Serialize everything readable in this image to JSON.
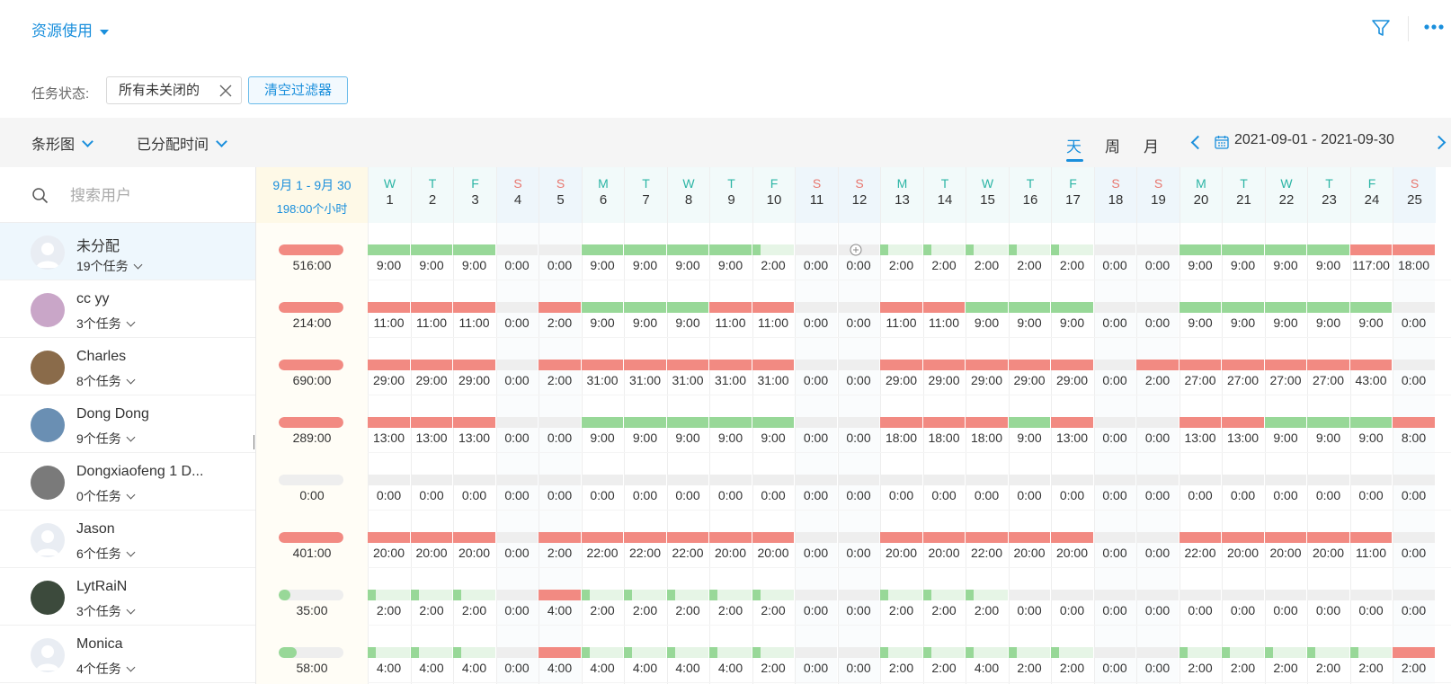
{
  "header": {
    "title": "资源使用"
  },
  "filter": {
    "label": "任务状态:",
    "chip": "所有未关闭的",
    "clear": "清空过滤器"
  },
  "toolbar": {
    "chart_type": "条形图",
    "metric": "已分配时间",
    "tabs": [
      {
        "label": "天",
        "active": true
      },
      {
        "label": "周",
        "active": false
      },
      {
        "label": "月",
        "active": false
      }
    ],
    "date_range": "2021-09-01 - 2021-09-30"
  },
  "search": {
    "placeholder": "搜索用户"
  },
  "summary_header": {
    "range": "9月 1 - 9月 30",
    "hours": "198:00个小时"
  },
  "days": [
    {
      "d": "W",
      "n": "1"
    },
    {
      "d": "T",
      "n": "2"
    },
    {
      "d": "F",
      "n": "3"
    },
    {
      "d": "S",
      "n": "4"
    },
    {
      "d": "S",
      "n": "5"
    },
    {
      "d": "M",
      "n": "6"
    },
    {
      "d": "T",
      "n": "7"
    },
    {
      "d": "W",
      "n": "8"
    },
    {
      "d": "T",
      "n": "9"
    },
    {
      "d": "F",
      "n": "10"
    },
    {
      "d": "S",
      "n": "11"
    },
    {
      "d": "S",
      "n": "12"
    },
    {
      "d": "M",
      "n": "13"
    },
    {
      "d": "T",
      "n": "14"
    },
    {
      "d": "W",
      "n": "15"
    },
    {
      "d": "T",
      "n": "16"
    },
    {
      "d": "F",
      "n": "17"
    },
    {
      "d": "S",
      "n": "18"
    },
    {
      "d": "S",
      "n": "19"
    },
    {
      "d": "M",
      "n": "20"
    },
    {
      "d": "T",
      "n": "21"
    },
    {
      "d": "W",
      "n": "22"
    },
    {
      "d": "T",
      "n": "23"
    },
    {
      "d": "F",
      "n": "24"
    },
    {
      "d": "S",
      "n": "25"
    }
  ],
  "colors": {
    "over": "#f28a82",
    "full": "#98d898",
    "partial_fill": "#98d898",
    "partial_bg": "#e6f5e6",
    "empty": "#eeeeee"
  },
  "users": [
    {
      "name": "未分配",
      "tasks": "19个任务",
      "total": "516:00",
      "total_state": "over",
      "total_fill": 1,
      "cells": [
        "9:00",
        "9:00",
        "9:00",
        "0:00",
        "0:00",
        "9:00",
        "9:00",
        "9:00",
        "9:00",
        "2:00",
        "0:00",
        "0:00",
        "2:00",
        "2:00",
        "2:00",
        "2:00",
        "2:00",
        "0:00",
        "0:00",
        "9:00",
        "9:00",
        "9:00",
        "9:00",
        "117:00",
        "18:00"
      ],
      "states": [
        "full",
        "full",
        "full",
        "empty",
        "empty",
        "full",
        "full",
        "full",
        "full",
        "partial",
        "empty",
        "empty",
        "partial",
        "partial",
        "partial",
        "partial",
        "partial",
        "empty",
        "empty",
        "full",
        "full",
        "full",
        "full",
        "over",
        "over"
      ]
    },
    {
      "name": "cc yy",
      "tasks": "3个任务",
      "total": "214:00",
      "total_state": "over",
      "total_fill": 1,
      "cells": [
        "11:00",
        "11:00",
        "11:00",
        "0:00",
        "2:00",
        "9:00",
        "9:00",
        "9:00",
        "11:00",
        "11:00",
        "0:00",
        "0:00",
        "11:00",
        "11:00",
        "9:00",
        "9:00",
        "9:00",
        "0:00",
        "0:00",
        "9:00",
        "9:00",
        "9:00",
        "9:00",
        "9:00",
        "0:00"
      ],
      "states": [
        "over",
        "over",
        "over",
        "empty",
        "over",
        "full",
        "full",
        "full",
        "over",
        "over",
        "empty",
        "empty",
        "over",
        "over",
        "full",
        "full",
        "full",
        "empty",
        "empty",
        "full",
        "full",
        "full",
        "full",
        "full",
        "empty"
      ]
    },
    {
      "name": "Charles",
      "tasks": "8个任务",
      "total": "690:00",
      "total_state": "over",
      "total_fill": 1,
      "cells": [
        "29:00",
        "29:00",
        "29:00",
        "0:00",
        "2:00",
        "31:00",
        "31:00",
        "31:00",
        "31:00",
        "31:00",
        "0:00",
        "0:00",
        "29:00",
        "29:00",
        "29:00",
        "29:00",
        "29:00",
        "0:00",
        "2:00",
        "27:00",
        "27:00",
        "27:00",
        "27:00",
        "43:00",
        "0:00"
      ],
      "states": [
        "over",
        "over",
        "over",
        "empty",
        "over",
        "over",
        "over",
        "over",
        "over",
        "over",
        "empty",
        "empty",
        "over",
        "over",
        "over",
        "over",
        "over",
        "empty",
        "over",
        "over",
        "over",
        "over",
        "over",
        "over",
        "empty"
      ]
    },
    {
      "name": "Dong Dong",
      "tasks": "9个任务",
      "total": "289:00",
      "total_state": "over",
      "total_fill": 1,
      "cells": [
        "13:00",
        "13:00",
        "13:00",
        "0:00",
        "0:00",
        "9:00",
        "9:00",
        "9:00",
        "9:00",
        "9:00",
        "0:00",
        "0:00",
        "18:00",
        "18:00",
        "18:00",
        "9:00",
        "13:00",
        "0:00",
        "0:00",
        "13:00",
        "13:00",
        "9:00",
        "9:00",
        "9:00",
        "8:00"
      ],
      "states": [
        "over",
        "over",
        "over",
        "empty",
        "empty",
        "full",
        "full",
        "full",
        "full",
        "full",
        "empty",
        "empty",
        "over",
        "over",
        "over",
        "full",
        "over",
        "empty",
        "empty",
        "over",
        "over",
        "full",
        "full",
        "full",
        "over"
      ]
    },
    {
      "name": "Dongxiaofeng 1 D...",
      "tasks": "0个任务",
      "total": "0:00",
      "total_state": "empty",
      "total_fill": 0,
      "cells": [
        "0:00",
        "0:00",
        "0:00",
        "0:00",
        "0:00",
        "0:00",
        "0:00",
        "0:00",
        "0:00",
        "0:00",
        "0:00",
        "0:00",
        "0:00",
        "0:00",
        "0:00",
        "0:00",
        "0:00",
        "0:00",
        "0:00",
        "0:00",
        "0:00",
        "0:00",
        "0:00",
        "0:00",
        "0:00"
      ],
      "states": [
        "empty",
        "empty",
        "empty",
        "empty",
        "empty",
        "empty",
        "empty",
        "empty",
        "empty",
        "empty",
        "empty",
        "empty",
        "empty",
        "empty",
        "empty",
        "empty",
        "empty",
        "empty",
        "empty",
        "empty",
        "empty",
        "empty",
        "empty",
        "empty",
        "empty"
      ]
    },
    {
      "name": "Jason",
      "tasks": "6个任务",
      "total": "401:00",
      "total_state": "over",
      "total_fill": 1,
      "cells": [
        "20:00",
        "20:00",
        "20:00",
        "0:00",
        "2:00",
        "22:00",
        "22:00",
        "22:00",
        "20:00",
        "20:00",
        "0:00",
        "0:00",
        "20:00",
        "20:00",
        "22:00",
        "20:00",
        "20:00",
        "0:00",
        "0:00",
        "22:00",
        "20:00",
        "20:00",
        "20:00",
        "11:00",
        "0:00"
      ],
      "states": [
        "over",
        "over",
        "over",
        "empty",
        "over",
        "over",
        "over",
        "over",
        "over",
        "over",
        "empty",
        "empty",
        "over",
        "over",
        "over",
        "over",
        "over",
        "empty",
        "empty",
        "over",
        "over",
        "over",
        "over",
        "over",
        "empty"
      ]
    },
    {
      "name": "LytRaiN",
      "tasks": "3个任务",
      "total": "35:00",
      "total_state": "partial",
      "total_fill": 0.18,
      "cells": [
        "2:00",
        "2:00",
        "2:00",
        "0:00",
        "4:00",
        "2:00",
        "2:00",
        "2:00",
        "2:00",
        "2:00",
        "0:00",
        "0:00",
        "2:00",
        "2:00",
        "2:00",
        "0:00",
        "0:00",
        "0:00",
        "0:00",
        "0:00",
        "0:00",
        "0:00",
        "0:00",
        "0:00",
        "0:00"
      ],
      "states": [
        "partial",
        "partial",
        "partial",
        "empty",
        "over",
        "partial",
        "partial",
        "partial",
        "partial",
        "partial",
        "empty",
        "empty",
        "partial",
        "partial",
        "partial",
        "empty",
        "empty",
        "empty",
        "empty",
        "empty",
        "empty",
        "empty",
        "empty",
        "empty",
        "empty"
      ]
    },
    {
      "name": "Monica",
      "tasks": "4个任务",
      "total": "58:00",
      "total_state": "partial",
      "total_fill": 0.28,
      "cells": [
        "4:00",
        "4:00",
        "4:00",
        "0:00",
        "4:00",
        "4:00",
        "4:00",
        "4:00",
        "4:00",
        "2:00",
        "0:00",
        "0:00",
        "2:00",
        "2:00",
        "4:00",
        "2:00",
        "2:00",
        "0:00",
        "0:00",
        "2:00",
        "2:00",
        "2:00",
        "2:00",
        "2:00",
        "2:00"
      ],
      "states": [
        "partial",
        "partial",
        "partial",
        "empty",
        "over",
        "partial",
        "partial",
        "partial",
        "partial",
        "partial",
        "empty",
        "empty",
        "partial",
        "partial",
        "partial",
        "partial",
        "partial",
        "empty",
        "empty",
        "partial",
        "partial",
        "partial",
        "partial",
        "partial",
        "over"
      ]
    }
  ]
}
